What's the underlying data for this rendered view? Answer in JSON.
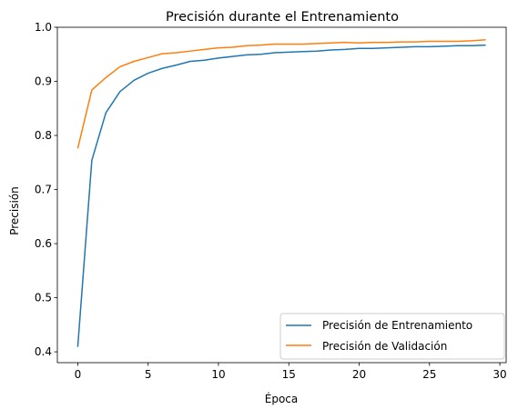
{
  "chart_data": {
    "type": "line",
    "title": "Precisión durante el Entrenamiento",
    "xlabel": "Época",
    "ylabel": "Precisión",
    "xlim": [
      -1.45,
      30.45
    ],
    "ylim": [
      0.38,
      1.0
    ],
    "xticks": [
      0,
      5,
      10,
      15,
      20,
      25,
      30
    ],
    "xtick_labels": [
      "0",
      "5",
      "10",
      "15",
      "20",
      "25",
      "30"
    ],
    "yticks": [
      0.4,
      0.5,
      0.6,
      0.7,
      0.8,
      0.9,
      1.0
    ],
    "ytick_labels": [
      "0.4",
      "0.5",
      "0.6",
      "0.7",
      "0.8",
      "0.9",
      "1.0"
    ],
    "grid": false,
    "legend_position": "lower-right",
    "x": [
      0,
      1,
      2,
      3,
      4,
      5,
      6,
      7,
      8,
      9,
      10,
      11,
      12,
      13,
      14,
      15,
      16,
      17,
      18,
      19,
      20,
      21,
      22,
      23,
      24,
      25,
      26,
      27,
      28,
      29
    ],
    "series": [
      {
        "name": "Precisión de Entrenamiento",
        "color": "#1f77b4",
        "values": [
          0.409,
          0.754,
          0.842,
          0.881,
          0.902,
          0.915,
          0.924,
          0.93,
          0.937,
          0.939,
          0.943,
          0.946,
          0.949,
          0.95,
          0.953,
          0.954,
          0.955,
          0.956,
          0.958,
          0.959,
          0.961,
          0.961,
          0.962,
          0.963,
          0.964,
          0.964,
          0.965,
          0.966,
          0.966,
          0.967
        ]
      },
      {
        "name": "Precisión de Validación",
        "color": "#ff7f0e",
        "values": [
          0.776,
          0.884,
          0.907,
          0.927,
          0.937,
          0.944,
          0.951,
          0.953,
          0.956,
          0.959,
          0.962,
          0.963,
          0.966,
          0.967,
          0.969,
          0.969,
          0.969,
          0.97,
          0.971,
          0.972,
          0.971,
          0.972,
          0.972,
          0.973,
          0.973,
          0.974,
          0.974,
          0.974,
          0.975,
          0.977
        ]
      }
    ]
  }
}
